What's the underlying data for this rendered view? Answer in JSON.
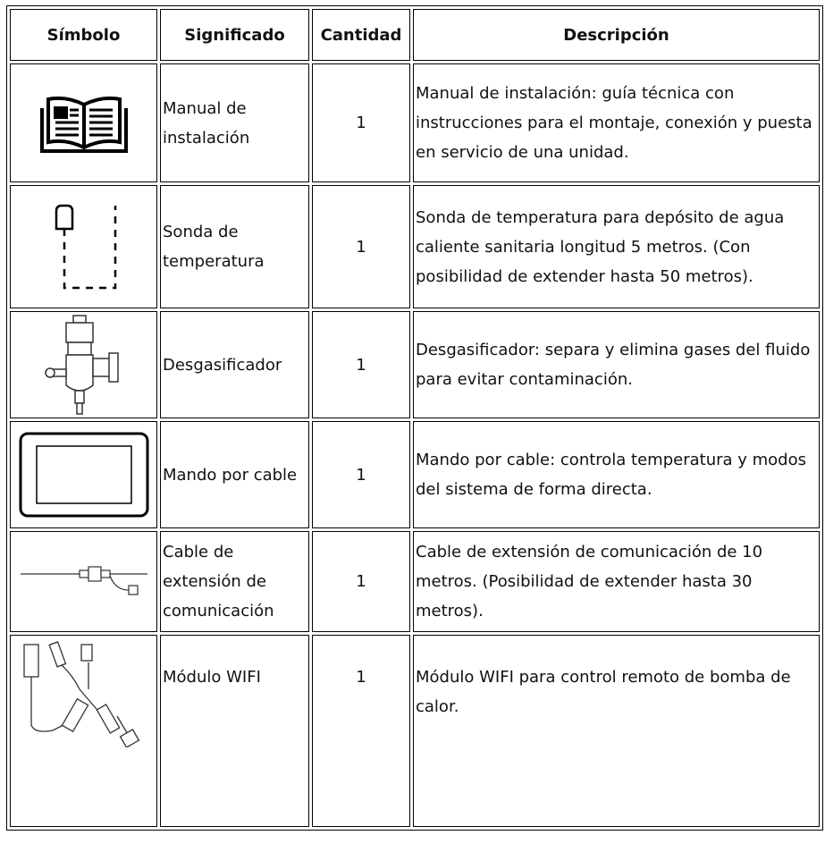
{
  "table": {
    "headers": [
      "Símbolo",
      "Significado",
      "Cantidad",
      "Descripción"
    ],
    "rows": [
      {
        "significado": "Manual de instalación",
        "cantidad": 1,
        "descripcion": "Manual de instalación: guía técnica con instrucciones para el montaje, conexión y puesta en servicio de una unidad."
      },
      {
        "significado": "Sonda de temperatura",
        "cantidad": 1,
        "descripcion": "Sonda de temperatura para depósito de agua caliente sanitaria longitud 5 metros. (Con posibilidad de extender hasta 50 metros)."
      },
      {
        "significado": "Desgasificador",
        "cantidad": 1,
        "descripcion": "Desgasificador: separa y elimina gases del fluido para evitar contaminación."
      },
      {
        "significado": "Mando por cable",
        "cantidad": 1,
        "descripcion": "Mando por cable: controla temperatura y modos del sistema de forma directa."
      },
      {
        "significado": "Cable de extensión de comunicación",
        "cantidad": 1,
        "descripcion": "Cable de extensión de comunicación de 10 metros. (Posibilidad de extender hasta 30 metros)."
      },
      {
        "significado": "Módulo WIFI",
        "cantidad": 1,
        "descripcion": "Módulo WIFI para control remoto de bomba de calor."
      }
    ]
  }
}
